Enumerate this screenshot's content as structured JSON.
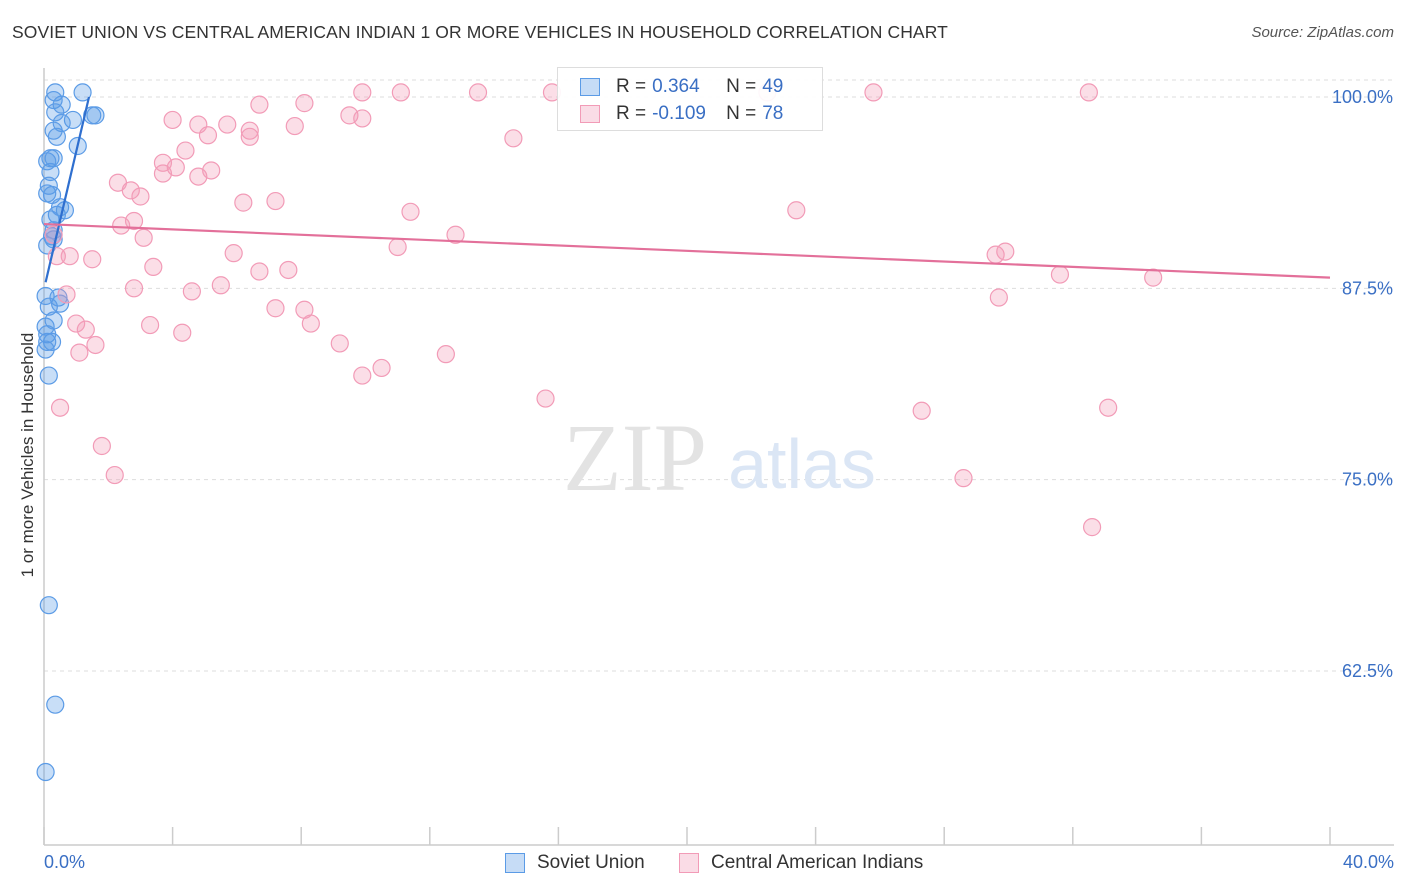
{
  "title": "SOVIET UNION VS CENTRAL AMERICAN INDIAN 1 OR MORE VEHICLES IN HOUSEHOLD CORRELATION CHART",
  "source": "Source: ZipAtlas.com",
  "watermark": {
    "zip": "ZIP",
    "atlas": "atlas"
  },
  "stats_legend": [
    {
      "r_label": "R =",
      "r_value": "0.364",
      "n_label": "N =",
      "n_value": "49",
      "color": "#5b9be6"
    },
    {
      "r_label": "R =",
      "r_value": "-0.109",
      "n_label": "N =",
      "n_value": "78",
      "color": "#f29bb7"
    }
  ],
  "chart_data": {
    "type": "scatter",
    "title": "SOVIET UNION VS CENTRAL AMERICAN INDIAN 1 OR MORE VEHICLES IN HOUSEHOLD CORRELATION CHART",
    "xlabel": "",
    "ylabel": "1 or more Vehicles in Household",
    "xlim": [
      0,
      40
    ],
    "ylim": [
      50,
      101
    ],
    "x_tick_labels": [
      "0.0%",
      "40.0%"
    ],
    "y_ticks": [
      62.5,
      75.0,
      87.5,
      100.0
    ],
    "y_tick_labels": [
      "62.5%",
      "75.0%",
      "87.5%",
      "100.0%"
    ],
    "grid": true,
    "legend_position": "bottom",
    "series": [
      {
        "name": "Soviet Union",
        "color": "#5b9be6",
        "trend": {
          "x": [
            0.05,
            1.4
          ],
          "y": [
            87.9,
            100.0
          ]
        },
        "points": [
          [
            0.35,
            100.3
          ],
          [
            1.2,
            100.3
          ],
          [
            0.3,
            99.8
          ],
          [
            0.55,
            99.5
          ],
          [
            0.35,
            99.0
          ],
          [
            1.5,
            98.8
          ],
          [
            1.6,
            98.8
          ],
          [
            0.9,
            98.5
          ],
          [
            0.55,
            98.3
          ],
          [
            0.3,
            97.8
          ],
          [
            0.4,
            97.4
          ],
          [
            1.05,
            96.8
          ],
          [
            0.2,
            96.0
          ],
          [
            0.3,
            96.0
          ],
          [
            0.1,
            95.8
          ],
          [
            0.2,
            95.1
          ],
          [
            0.15,
            94.2
          ],
          [
            0.1,
            93.7
          ],
          [
            0.25,
            93.6
          ],
          [
            0.5,
            92.8
          ],
          [
            0.65,
            92.6
          ],
          [
            0.4,
            92.3
          ],
          [
            0.2,
            92.0
          ],
          [
            0.3,
            91.3
          ],
          [
            0.25,
            90.9
          ],
          [
            0.3,
            90.7
          ],
          [
            0.1,
            90.3
          ],
          [
            0.05,
            87.0
          ],
          [
            0.45,
            86.9
          ],
          [
            0.5,
            86.5
          ],
          [
            0.15,
            86.3
          ],
          [
            0.3,
            85.4
          ],
          [
            0.05,
            85.0
          ],
          [
            0.1,
            84.5
          ],
          [
            0.25,
            84.0
          ],
          [
            0.1,
            84.0
          ],
          [
            0.05,
            83.5
          ],
          [
            0.15,
            81.8
          ],
          [
            0.15,
            66.8
          ],
          [
            0.35,
            60.3
          ],
          [
            0.05,
            55.9
          ]
        ]
      },
      {
        "name": "Central American Indians",
        "color": "#f29bb7",
        "trend": {
          "x": [
            0.0,
            40.0
          ],
          "y": [
            91.7,
            88.2
          ]
        },
        "points": [
          [
            9.9,
            100.3
          ],
          [
            11.1,
            100.3
          ],
          [
            13.5,
            100.3
          ],
          [
            15.8,
            100.3
          ],
          [
            22.5,
            100.3
          ],
          [
            25.8,
            100.3
          ],
          [
            32.5,
            100.3
          ],
          [
            6.7,
            99.5
          ],
          [
            8.1,
            99.6
          ],
          [
            9.5,
            98.8
          ],
          [
            9.9,
            98.6
          ],
          [
            4.0,
            98.5
          ],
          [
            4.8,
            98.2
          ],
          [
            5.7,
            98.2
          ],
          [
            7.8,
            98.1
          ],
          [
            6.4,
            97.8
          ],
          [
            5.1,
            97.5
          ],
          [
            6.4,
            97.4
          ],
          [
            14.6,
            97.3
          ],
          [
            4.4,
            96.5
          ],
          [
            3.7,
            95.7
          ],
          [
            4.1,
            95.4
          ],
          [
            5.2,
            95.2
          ],
          [
            3.7,
            95.0
          ],
          [
            4.8,
            94.8
          ],
          [
            2.3,
            94.4
          ],
          [
            2.7,
            93.9
          ],
          [
            3.0,
            93.5
          ],
          [
            6.2,
            93.1
          ],
          [
            7.2,
            93.2
          ],
          [
            11.4,
            92.5
          ],
          [
            23.4,
            92.6
          ],
          [
            2.8,
            91.9
          ],
          [
            2.4,
            91.6
          ],
          [
            12.8,
            91.0
          ],
          [
            0.3,
            91.0
          ],
          [
            3.1,
            90.8
          ],
          [
            11.0,
            90.2
          ],
          [
            5.9,
            89.8
          ],
          [
            29.9,
            89.9
          ],
          [
            29.6,
            89.7
          ],
          [
            0.4,
            89.6
          ],
          [
            0.8,
            89.6
          ],
          [
            1.5,
            89.4
          ],
          [
            3.4,
            88.9
          ],
          [
            6.7,
            88.6
          ],
          [
            7.6,
            88.7
          ],
          [
            31.6,
            88.4
          ],
          [
            34.5,
            88.2
          ],
          [
            5.5,
            87.7
          ],
          [
            2.8,
            87.5
          ],
          [
            4.6,
            87.3
          ],
          [
            0.7,
            87.1
          ],
          [
            29.7,
            86.9
          ],
          [
            7.2,
            86.2
          ],
          [
            8.1,
            86.1
          ],
          [
            8.3,
            85.2
          ],
          [
            1.0,
            85.2
          ],
          [
            3.3,
            85.1
          ],
          [
            1.3,
            84.8
          ],
          [
            4.3,
            84.6
          ],
          [
            9.2,
            83.9
          ],
          [
            1.6,
            83.8
          ],
          [
            1.1,
            83.3
          ],
          [
            12.5,
            83.2
          ],
          [
            10.5,
            82.3
          ],
          [
            9.9,
            81.8
          ],
          [
            15.6,
            80.3
          ],
          [
            0.5,
            79.7
          ],
          [
            27.3,
            79.5
          ],
          [
            33.1,
            79.7
          ],
          [
            1.8,
            77.2
          ],
          [
            2.2,
            75.3
          ],
          [
            28.6,
            75.1
          ],
          [
            32.6,
            71.9
          ]
        ]
      }
    ]
  }
}
